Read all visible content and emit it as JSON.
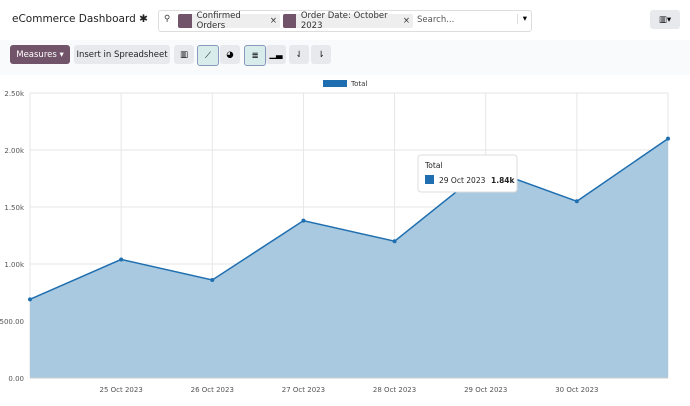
{
  "header": {
    "title": "eCommerce Dashboard",
    "facets": [
      "Confirmed Orders",
      "Order Date: October 2023"
    ],
    "search_placeholder": "Search..."
  },
  "toolbar": {
    "measures": "Measures",
    "insert": "Insert in Spreadsheet"
  },
  "chart_data": {
    "type": "area",
    "categories": [
      null,
      "25 Oct 2023",
      "26 Oct 2023",
      "27 Oct 2023",
      "28 Oct 2023",
      "29 Oct 2023",
      "30 Oct 2023",
      null
    ],
    "series": [
      {
        "name": "Total",
        "color": "#1f6fb0",
        "fill": "#a9c9e0",
        "values": [
          690,
          1040,
          860,
          1380,
          1200,
          1840,
          1550,
          2100
        ]
      }
    ],
    "ylim": [
      0,
      2500
    ],
    "yticks": [
      {
        "value": 0,
        "label": "0.00"
      },
      {
        "value": 500,
        "label": "500.00"
      },
      {
        "value": 1000,
        "label": "1.00k"
      },
      {
        "value": 1500,
        "label": "1.50k"
      },
      {
        "value": 2000,
        "label": "2.00k"
      },
      {
        "value": 2500,
        "label": "2.50k"
      }
    ],
    "grid": true,
    "tooltip": {
      "title": "Total",
      "date": "29 Oct 2023",
      "value": "1.84k"
    }
  }
}
